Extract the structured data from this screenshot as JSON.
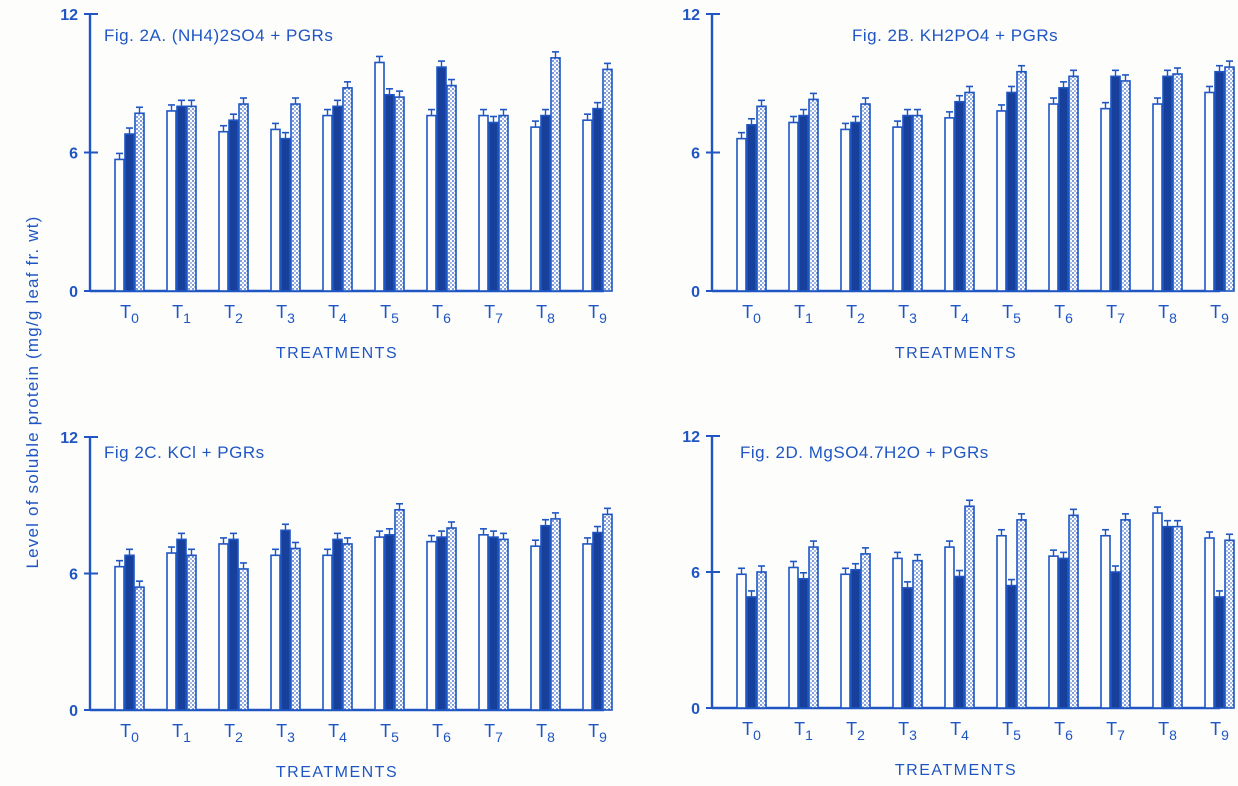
{
  "shared": {
    "ylabel": "Level of soluble protein (mg/g leaf fr. wt)",
    "xlabel": "TREATMENTS",
    "colors": {
      "ink": "#1f56c4",
      "ink_dark": "#173f9c",
      "paper": "#fdfdfb"
    }
  },
  "chart_data": [
    {
      "type": "bar",
      "title": "Fig. 2A. (NH4)2SO4 + PGRs",
      "xlabel": "TREATMENTS",
      "ylim": [
        0,
        12
      ],
      "yticks": [
        "0",
        "6",
        "12"
      ],
      "categories": [
        "T0",
        "T1",
        "T2",
        "T3",
        "T4",
        "T5",
        "T6",
        "T7",
        "T8",
        "T9"
      ],
      "series": [
        {
          "values": [
            5.7,
            7.8,
            6.9,
            7.0,
            7.6,
            9.9,
            7.6,
            7.6,
            7.1,
            7.4
          ]
        },
        {
          "values": [
            6.8,
            8.0,
            7.4,
            6.6,
            8.0,
            8.5,
            9.7,
            7.3,
            7.6,
            7.9
          ]
        },
        {
          "values": [
            7.7,
            8.0,
            8.1,
            8.1,
            8.8,
            8.4,
            8.9,
            7.6,
            10.1,
            9.6
          ]
        }
      ]
    },
    {
      "type": "bar",
      "title": "Fig. 2B. KH2PO4 + PGRs",
      "xlabel": "TREATMENTS",
      "ylim": [
        0,
        12
      ],
      "yticks": [
        "0",
        "6",
        "12"
      ],
      "categories": [
        "T0",
        "T1",
        "T2",
        "T3",
        "T4",
        "T5",
        "T6",
        "T7",
        "T8",
        "T9"
      ],
      "series": [
        {
          "values": [
            6.6,
            7.3,
            7.0,
            7.1,
            7.5,
            7.8,
            8.1,
            7.9,
            8.1,
            8.6
          ]
        },
        {
          "values": [
            7.2,
            7.6,
            7.3,
            7.6,
            8.2,
            8.6,
            8.8,
            9.3,
            9.3,
            9.5
          ]
        },
        {
          "values": [
            8.0,
            8.3,
            8.1,
            7.6,
            8.6,
            9.5,
            9.3,
            9.1,
            9.4,
            9.7
          ]
        }
      ]
    },
    {
      "type": "bar",
      "title": "Fig 2C. KCl + PGRs",
      "xlabel": "TREATMENTS",
      "ylim": [
        0,
        12
      ],
      "yticks": [
        "0",
        "6",
        "12"
      ],
      "categories": [
        "T0",
        "T1",
        "T2",
        "T3",
        "T4",
        "T5",
        "T6",
        "T7",
        "T8",
        "T9"
      ],
      "series": [
        {
          "values": [
            6.3,
            6.9,
            7.3,
            6.8,
            6.8,
            7.6,
            7.4,
            7.7,
            7.2,
            7.3
          ]
        },
        {
          "values": [
            6.8,
            7.5,
            7.5,
            7.9,
            7.5,
            7.7,
            7.6,
            7.6,
            8.1,
            7.8
          ]
        },
        {
          "values": [
            5.4,
            6.8,
            6.2,
            7.1,
            7.3,
            8.8,
            8.0,
            7.5,
            8.4,
            8.6
          ]
        }
      ]
    },
    {
      "type": "bar",
      "title": "Fig. 2D. MgSO4.7H2O + PGRs",
      "xlabel": "TREATMENTS",
      "ylim": [
        0,
        12
      ],
      "yticks": [
        "0",
        "6",
        "12"
      ],
      "categories": [
        "T0",
        "T1",
        "T2",
        "T3",
        "T4",
        "T5",
        "T6",
        "T7",
        "T8",
        "T9"
      ],
      "series": [
        {
          "values": [
            5.9,
            6.2,
            5.9,
            6.6,
            7.1,
            7.6,
            6.7,
            7.6,
            8.6,
            7.5
          ]
        },
        {
          "values": [
            4.9,
            5.7,
            6.1,
            5.3,
            5.8,
            5.4,
            6.6,
            6.0,
            8.0,
            4.9
          ]
        },
        {
          "values": [
            6.0,
            7.1,
            6.8,
            6.5,
            8.9,
            8.3,
            8.5,
            8.3,
            8.0,
            7.4
          ]
        }
      ]
    }
  ]
}
